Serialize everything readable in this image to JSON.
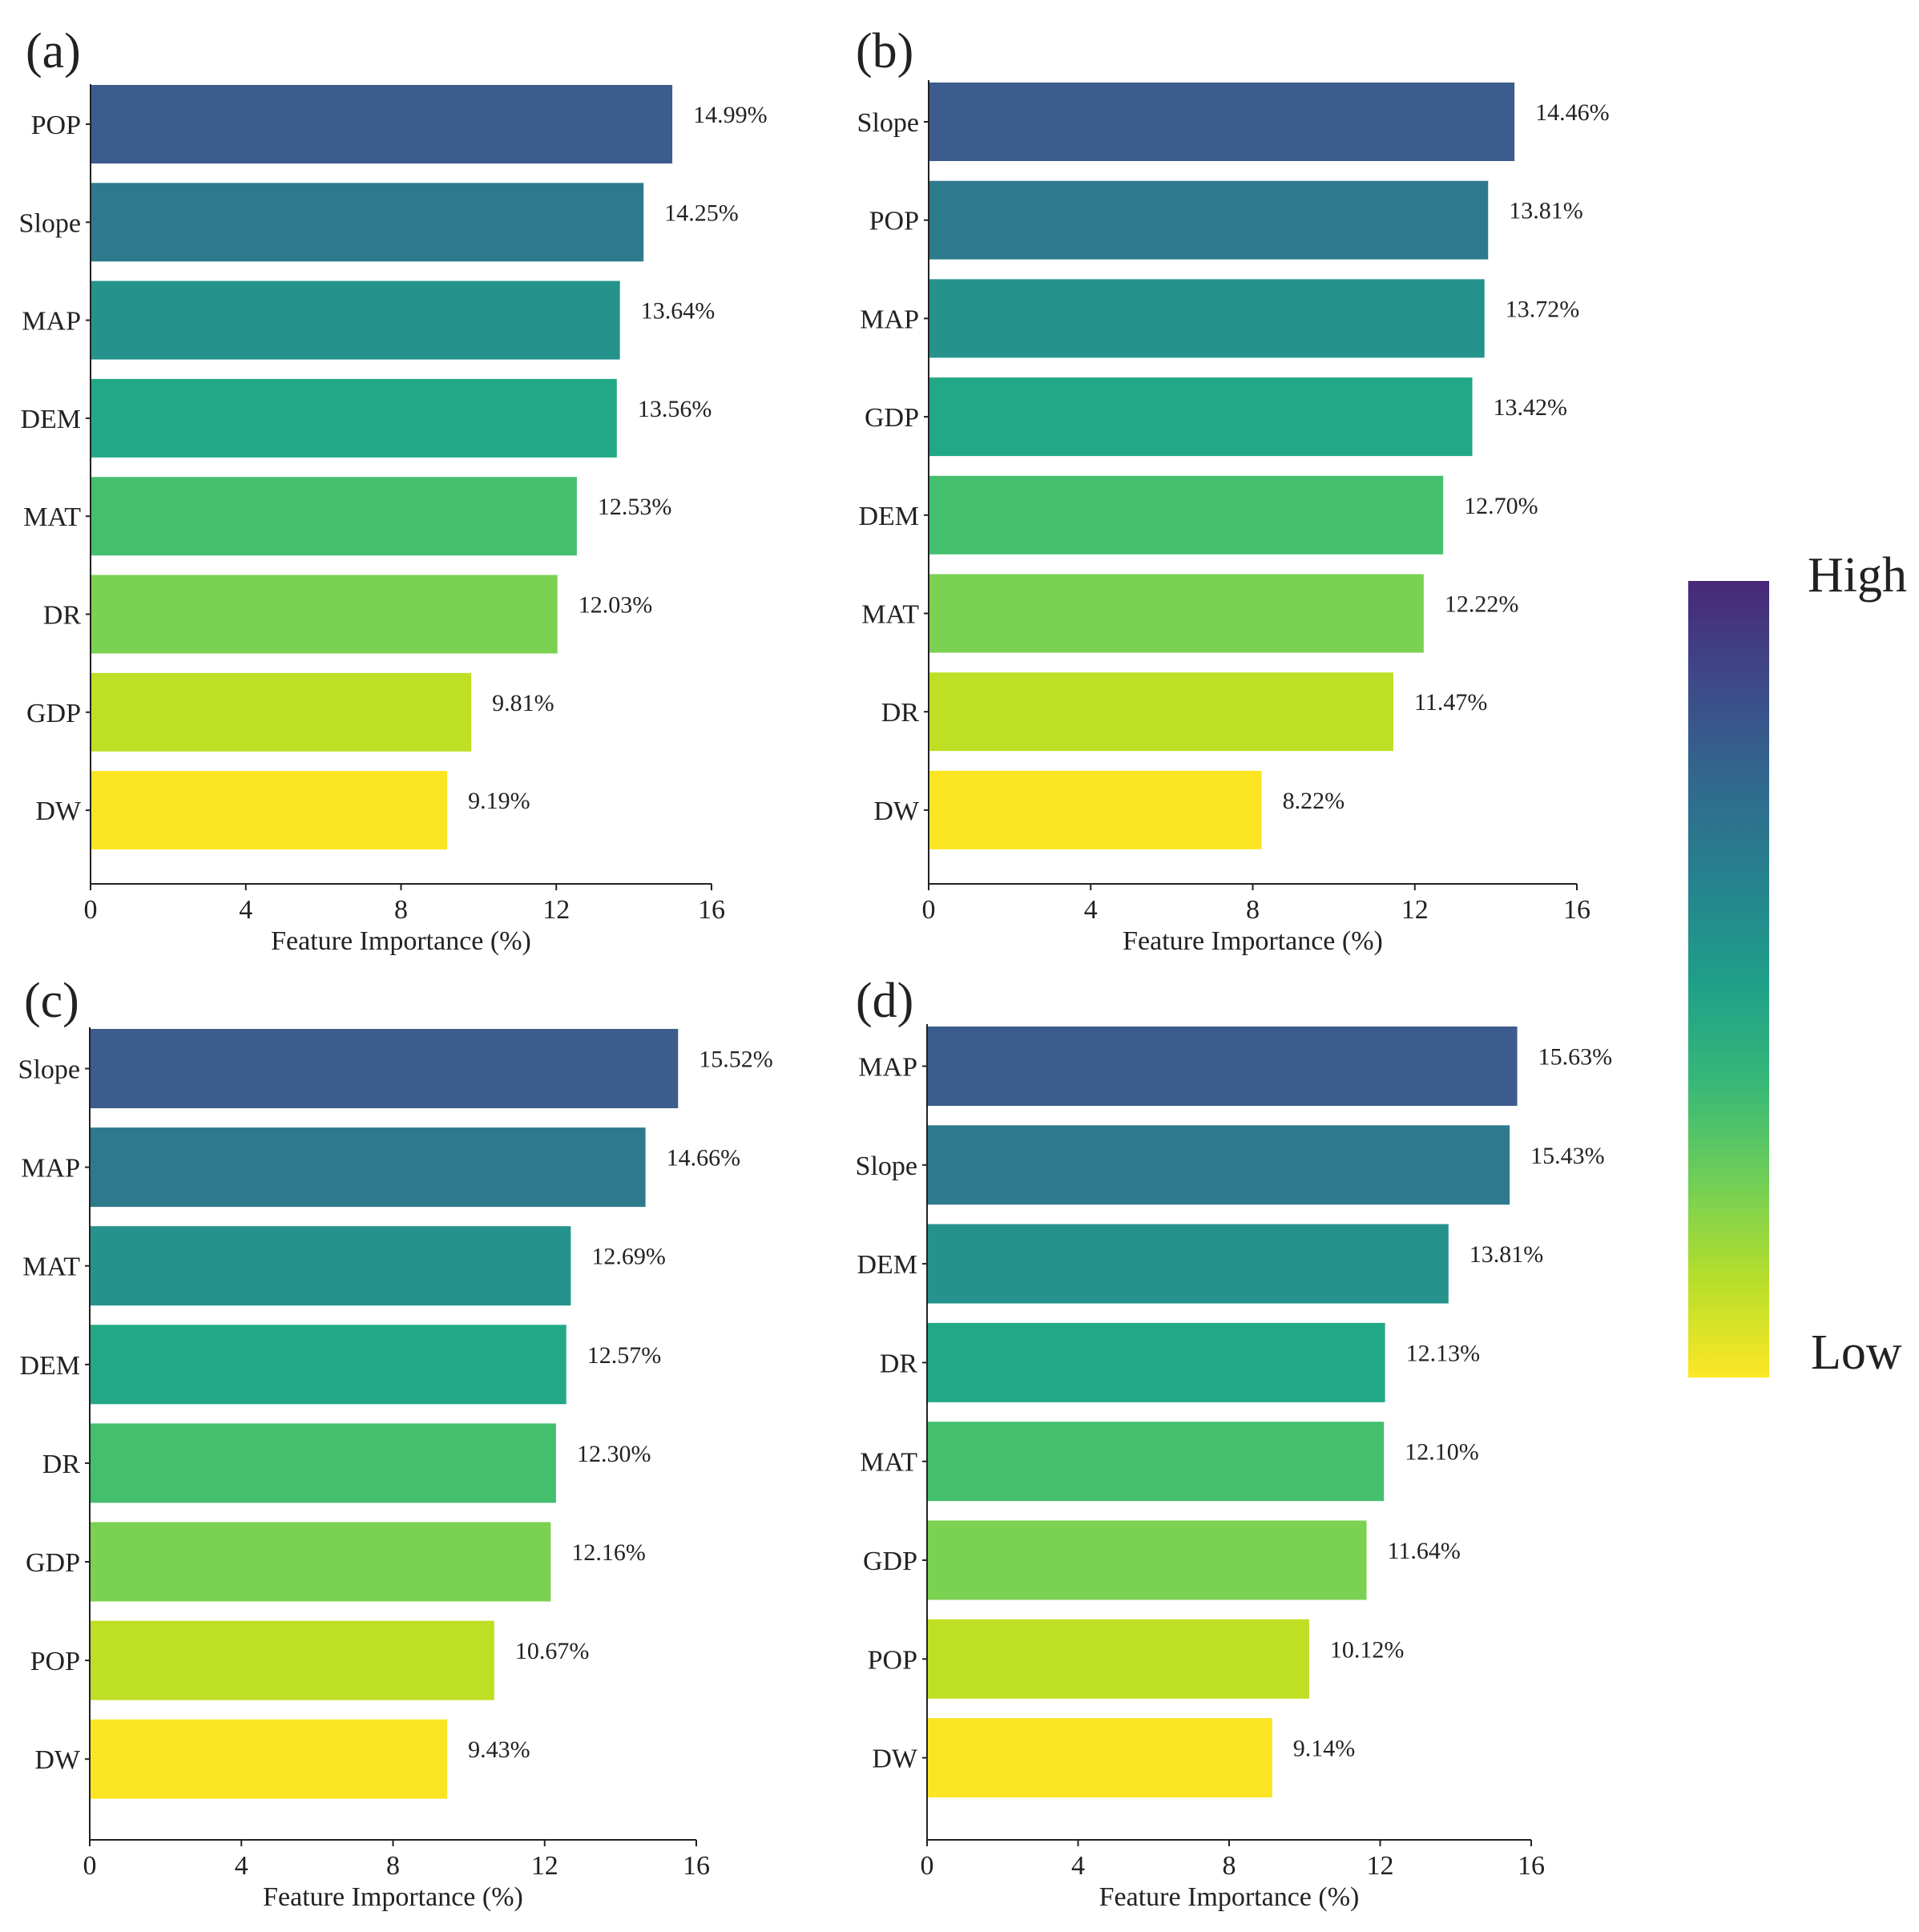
{
  "figure": {
    "colorbar": {
      "high_label": "High",
      "low_label": "Low",
      "colors": [
        "#fde725",
        "#b5de2b",
        "#6ece58",
        "#35b779",
        "#1f9e89",
        "#26828e",
        "#31688e",
        "#3e4989",
        "#482878"
      ]
    },
    "bar_colors": [
      "#3b5c8c",
      "#2d7a8c",
      "#25928c",
      "#22a887",
      "#44bf6e",
      "#7bd151",
      "#bedf24",
      "#fbe523"
    ]
  },
  "chart_data": [
    {
      "type": "bar",
      "orientation": "horizontal",
      "panel_label": "(a)",
      "categories": [
        "POP",
        "Slope",
        "MAP",
        "DEM",
        "MAT",
        "DR",
        "GDP",
        "DW"
      ],
      "values": [
        14.99,
        14.25,
        13.64,
        13.56,
        12.53,
        12.03,
        9.81,
        9.19
      ],
      "value_labels": [
        "14.99%",
        "14.25%",
        "13.64%",
        "13.56%",
        "12.53%",
        "12.03%",
        "9.81%",
        "9.19%"
      ],
      "xlabel": "Feature Importance (%)",
      "xlim": [
        0,
        16
      ],
      "xticks": [
        0,
        4,
        8,
        12,
        16
      ],
      "xtick_labels": [
        "0",
        "4",
        "8",
        "12",
        "16"
      ]
    },
    {
      "type": "bar",
      "orientation": "horizontal",
      "panel_label": "(b)",
      "categories": [
        "Slope",
        "POP",
        "MAP",
        "GDP",
        "DEM",
        "MAT",
        "DR",
        "DW"
      ],
      "values": [
        14.46,
        13.81,
        13.72,
        13.42,
        12.7,
        12.22,
        11.47,
        8.22
      ],
      "value_labels": [
        "14.46%",
        "13.81%",
        "13.72%",
        "13.42%",
        "12.70%",
        "12.22%",
        "11.47%",
        "8.22%"
      ],
      "xlabel": "Feature Importance (%)",
      "xlim": [
        0,
        16
      ],
      "xticks": [
        0,
        4,
        8,
        12,
        16
      ],
      "xtick_labels": [
        "0",
        "4",
        "8",
        "12",
        "16"
      ]
    },
    {
      "type": "bar",
      "orientation": "horizontal",
      "panel_label": "(c)",
      "categories": [
        "Slope",
        "MAP",
        "MAT",
        "DEM",
        "DR",
        "GDP",
        "POP",
        "DW"
      ],
      "values": [
        15.52,
        14.66,
        12.69,
        12.57,
        12.3,
        12.16,
        10.67,
        9.43
      ],
      "value_labels": [
        "15.52%",
        "14.66%",
        "12.69%",
        "12.57%",
        "12.30%",
        "12.16%",
        "10.67%",
        "9.43%"
      ],
      "xlabel": "Feature Importance (%)",
      "xlim": [
        0,
        16
      ],
      "xticks": [
        0,
        4,
        8,
        12,
        16
      ],
      "xtick_labels": [
        "0",
        "4",
        "8",
        "12",
        "16"
      ]
    },
    {
      "type": "bar",
      "orientation": "horizontal",
      "panel_label": "(d)",
      "categories": [
        "MAP",
        "Slope",
        "DEM",
        "DR",
        "MAT",
        "GDP",
        "POP",
        "DW"
      ],
      "values": [
        15.63,
        15.43,
        13.81,
        12.13,
        12.1,
        11.64,
        10.12,
        9.14
      ],
      "value_labels": [
        "15.63%",
        "15.43%",
        "13.81%",
        "12.13%",
        "12.10%",
        "11.64%",
        "10.12%",
        "9.14%"
      ],
      "xlabel": "Feature Importance (%)",
      "xlim": [
        0,
        16
      ],
      "xticks": [
        0,
        4,
        8,
        12,
        16
      ],
      "xtick_labels": [
        "0",
        "4",
        "8",
        "12",
        "16"
      ]
    }
  ]
}
